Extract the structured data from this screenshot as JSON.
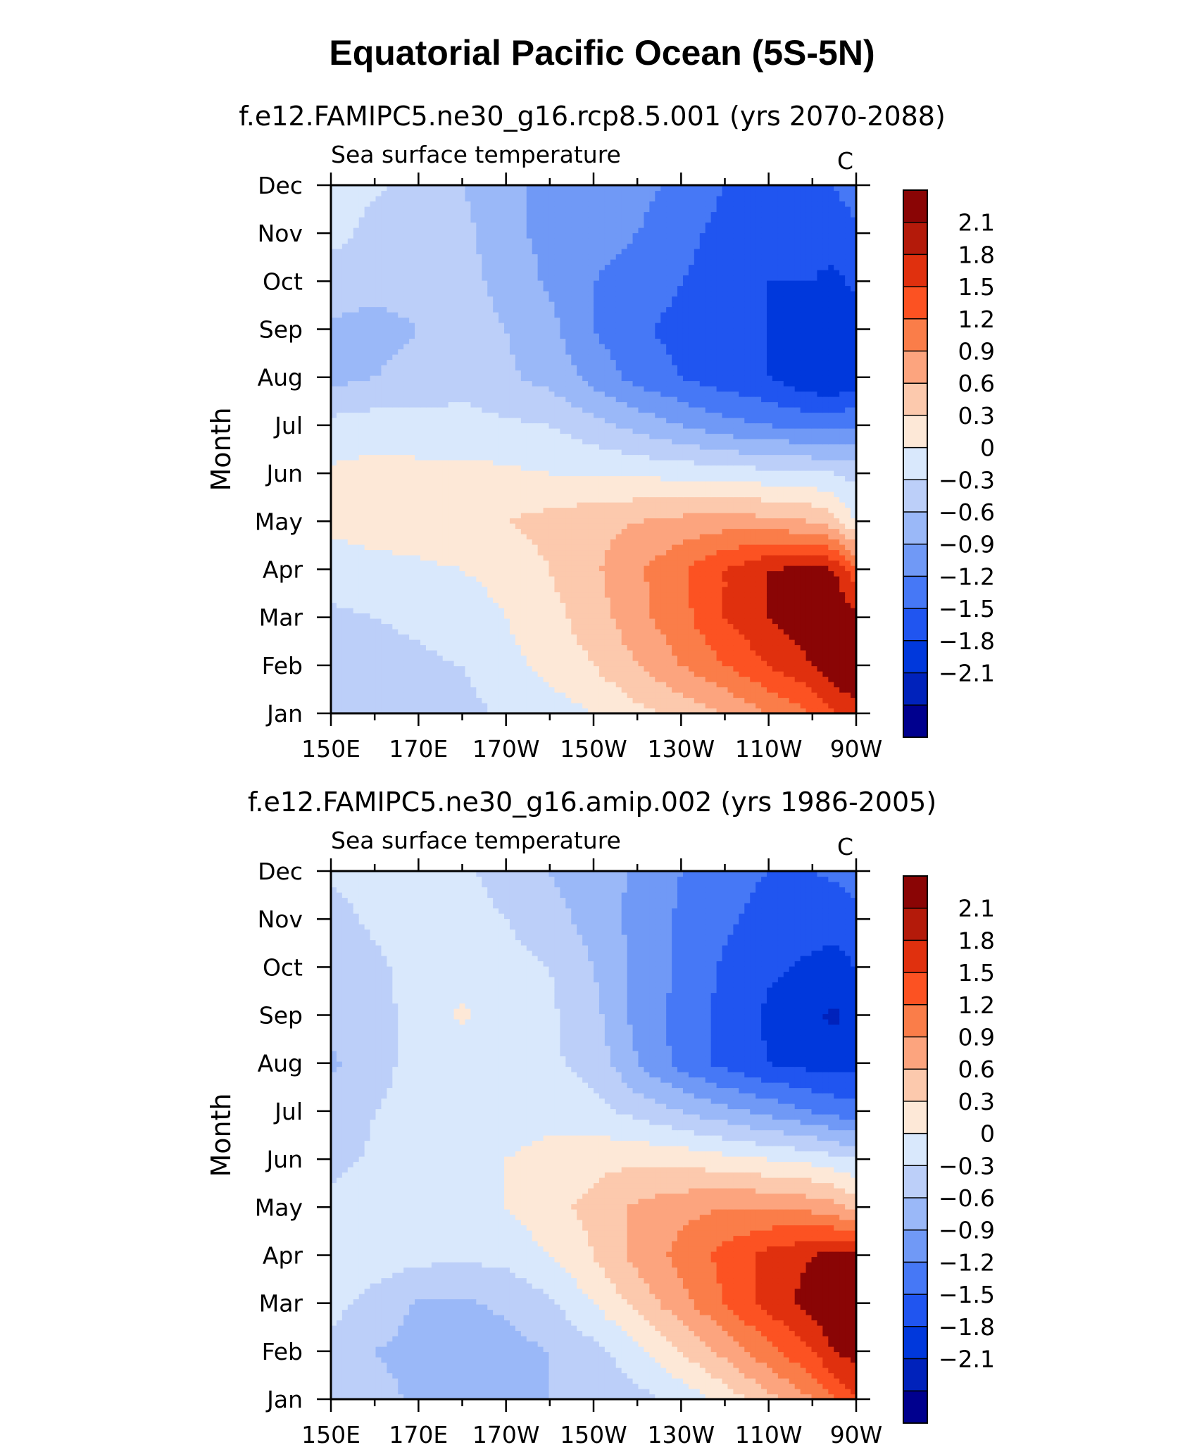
{
  "figure": {
    "title": "Equatorial Pacific Ocean (5S-5N)"
  },
  "chart_data": [
    {
      "type": "heatmap",
      "title": "f.e12.FAMIPC5.ne30_g16.rcp8.5.001 (yrs 2070-2088)",
      "subtitle": "Sea surface temperature",
      "units": "C",
      "ylabel": "Month",
      "xlabel": "",
      "x_ticks": [
        "150E",
        "170E",
        "170W",
        "150W",
        "130W",
        "110W",
        "90W"
      ],
      "x_longitudes": [
        150,
        170,
        190,
        210,
        230,
        250,
        270
      ],
      "y_ticks": [
        "Jan",
        "Feb",
        "Mar",
        "Apr",
        "May",
        "Jun",
        "Jul",
        "Aug",
        "Sep",
        "Oct",
        "Nov",
        "Dec"
      ],
      "colorbar_labels": [
        "2.1",
        "1.8",
        "1.5",
        "1.2",
        "0.9",
        "0.6",
        "0.3",
        "0",
        "−0.3",
        "−0.6",
        "−0.9",
        "−1.2",
        "−1.5",
        "−1.8",
        "−2.1"
      ],
      "levels": [
        -2.1,
        -1.8,
        -1.5,
        -1.2,
        -0.9,
        -0.6,
        -0.3,
        0,
        0.3,
        0.6,
        0.9,
        1.2,
        1.5,
        1.8,
        2.1
      ],
      "lon": [
        150,
        160,
        170,
        180,
        190,
        200,
        210,
        220,
        230,
        240,
        250,
        260,
        265,
        270
      ],
      "values": [
        [
          -0.1,
          -0.1,
          -0.1,
          -0.1,
          0.05,
          0.15,
          0.3,
          0.5,
          0.7,
          0.9,
          1.2,
          1.5,
          1.8,
          2.0
        ],
        [
          -0.1,
          -0.1,
          -0.05,
          0.0,
          0.2,
          0.4,
          0.6,
          0.9,
          1.2,
          1.5,
          1.8,
          2.1,
          2.3,
          2.4
        ],
        [
          -0.05,
          0.0,
          0.05,
          0.15,
          0.3,
          0.5,
          0.75,
          1.1,
          1.4,
          1.8,
          2.1,
          2.3,
          2.4,
          2.2
        ],
        [
          0.1,
          0.2,
          0.25,
          0.3,
          0.4,
          0.6,
          0.85,
          1.15,
          1.45,
          1.8,
          2.1,
          2.2,
          2.1,
          1.6
        ],
        [
          0.4,
          0.45,
          0.45,
          0.5,
          0.6,
          0.7,
          0.8,
          0.9,
          1.0,
          1.05,
          1.0,
          0.9,
          0.7,
          0.3
        ],
        [
          0.35,
          0.4,
          0.4,
          0.4,
          0.35,
          0.3,
          0.3,
          0.25,
          0.2,
          0.15,
          0.1,
          0.05,
          0.0,
          -0.1
        ],
        [
          0.1,
          0.15,
          0.1,
          0.1,
          0.05,
          0.0,
          -0.2,
          -0.4,
          -0.6,
          -0.8,
          -0.9,
          -1.0,
          -1.0,
          -0.9
        ],
        [
          -0.4,
          -0.3,
          -0.2,
          -0.1,
          -0.25,
          -0.4,
          -0.7,
          -1.0,
          -1.2,
          -1.35,
          -1.5,
          -1.75,
          -1.8,
          -1.7
        ],
        [
          -0.35,
          -0.4,
          -0.3,
          -0.15,
          -0.3,
          -0.5,
          -0.9,
          -1.15,
          -1.3,
          -1.35,
          -1.5,
          -1.65,
          -1.75,
          -1.6
        ],
        [
          -0.15,
          -0.2,
          -0.2,
          -0.2,
          -0.4,
          -0.65,
          -0.9,
          -1.0,
          -1.2,
          -1.35,
          -1.5,
          -1.5,
          -1.55,
          -1.45
        ],
        [
          0.1,
          -0.1,
          -0.1,
          -0.2,
          -0.5,
          -0.7,
          -0.8,
          -0.9,
          -1.1,
          -1.3,
          -1.4,
          -1.45,
          -1.4,
          -1.3
        ],
        [
          0.1,
          0.05,
          -0.1,
          -0.3,
          -0.6,
          -0.6,
          -0.6,
          -0.8,
          -1.0,
          -1.2,
          -1.3,
          -1.3,
          -1.2,
          -1.0
        ]
      ]
    },
    {
      "type": "heatmap",
      "title": "f.e12.FAMIPC5.ne30_g16.amip.002 (yrs 1986-2005)",
      "subtitle": "Sea surface temperature",
      "units": "C",
      "ylabel": "Month",
      "xlabel": "",
      "x_ticks": [
        "150E",
        "170E",
        "170W",
        "150W",
        "130W",
        "110W",
        "90W"
      ],
      "x_longitudes": [
        150,
        170,
        190,
        210,
        230,
        250,
        270
      ],
      "y_ticks": [
        "Jan",
        "Feb",
        "Mar",
        "Apr",
        "May",
        "Jun",
        "Jul",
        "Aug",
        "Sep",
        "Oct",
        "Nov",
        "Dec"
      ],
      "colorbar_labels": [
        "2.1",
        "1.8",
        "1.5",
        "1.2",
        "0.9",
        "0.6",
        "0.3",
        "0",
        "−0.3",
        "−0.6",
        "−0.9",
        "−1.2",
        "−1.5",
        "−1.8",
        "−2.1"
      ],
      "levels": [
        -2.1,
        -1.8,
        -1.5,
        -1.2,
        -0.9,
        -0.6,
        -0.3,
        0,
        0.3,
        0.6,
        0.9,
        1.2,
        1.5,
        1.8,
        2.1
      ],
      "lon": [
        150,
        160,
        170,
        180,
        190,
        200,
        210,
        220,
        230,
        240,
        250,
        260,
        265,
        270
      ],
      "values": [
        [
          -0.1,
          -0.2,
          -0.35,
          -0.4,
          -0.4,
          -0.3,
          -0.25,
          -0.1,
          0.1,
          0.4,
          0.8,
          1.2,
          1.5,
          1.8
        ],
        [
          -0.1,
          -0.3,
          -0.4,
          -0.45,
          -0.4,
          -0.3,
          -0.1,
          0.2,
          0.6,
          1.0,
          1.4,
          1.8,
          2.1,
          2.2
        ],
        [
          0.1,
          -0.1,
          -0.35,
          -0.35,
          -0.25,
          -0.05,
          0.3,
          0.7,
          1.1,
          1.5,
          1.9,
          2.25,
          2.4,
          2.4
        ],
        [
          0.1,
          0.15,
          0.1,
          0.05,
          0.1,
          0.3,
          0.6,
          1.0,
          1.3,
          1.6,
          1.9,
          2.1,
          2.2,
          2.2
        ],
        [
          0.1,
          0.15,
          0.2,
          0.2,
          0.3,
          0.5,
          0.7,
          0.95,
          1.1,
          1.2,
          1.2,
          1.1,
          1.0,
          0.8
        ],
        [
          -0.1,
          0.05,
          0.1,
          0.15,
          0.3,
          0.4,
          0.5,
          0.55,
          0.5,
          0.4,
          0.3,
          0.2,
          0.1,
          0.0
        ],
        [
          -0.2,
          0.0,
          0.1,
          0.1,
          0.15,
          0.2,
          0.1,
          -0.1,
          -0.3,
          -0.5,
          -0.7,
          -0.9,
          -1.0,
          -1.1
        ],
        [
          -0.35,
          -0.1,
          0.1,
          0.1,
          0.1,
          0.05,
          -0.1,
          -0.6,
          -1.0,
          -1.3,
          -1.5,
          -1.6,
          -1.65,
          -1.6
        ],
        [
          -0.2,
          -0.1,
          0.1,
          0.35,
          0.15,
          0.05,
          -0.2,
          -0.7,
          -1.0,
          -1.3,
          -1.55,
          -1.75,
          -1.85,
          -1.7
        ],
        [
          -0.2,
          -0.05,
          0.1,
          0.15,
          0.1,
          0.0,
          -0.3,
          -0.7,
          -0.95,
          -1.25,
          -1.45,
          -1.55,
          -1.6,
          -1.5
        ],
        [
          -0.1,
          0.05,
          0.1,
          0.1,
          0.0,
          -0.2,
          -0.4,
          -0.7,
          -0.95,
          -1.15,
          -1.3,
          -1.4,
          -1.4,
          -1.3
        ],
        [
          0.05,
          0.1,
          0.1,
          0.05,
          -0.1,
          -0.3,
          -0.45,
          -0.65,
          -0.9,
          -1.1,
          -1.2,
          -1.2,
          -1.15,
          -1.05
        ]
      ]
    }
  ]
}
